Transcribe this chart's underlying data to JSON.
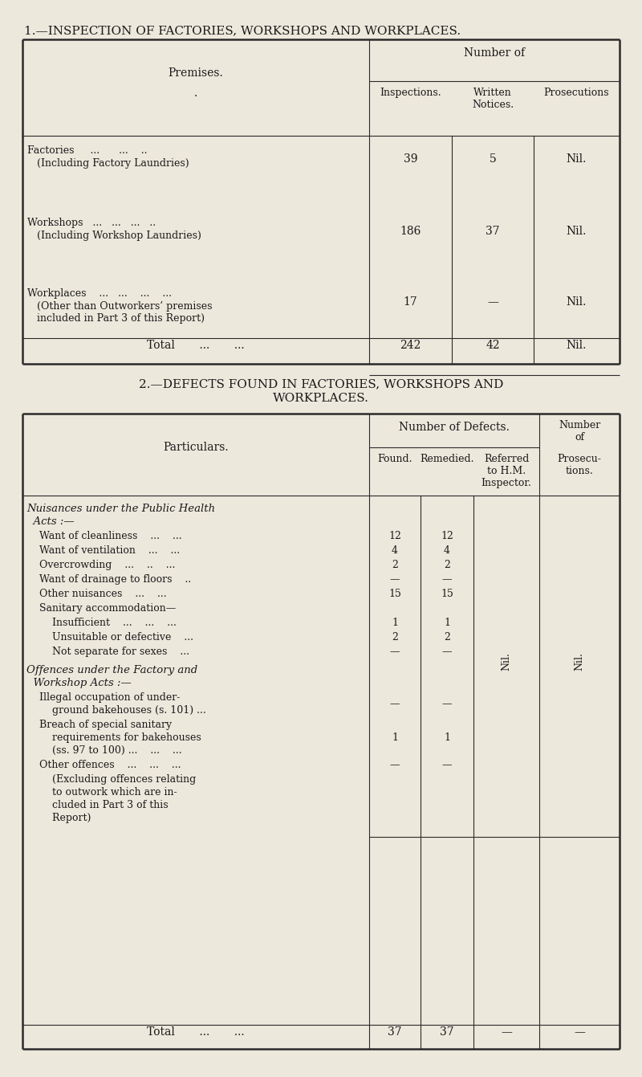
{
  "bg_color": "#ede8dc",
  "text_color": "#1a1a1a",
  "title1": "1.—INSPECTION OF FACTORIES, WORKSHOPS AND WORKPLACES.",
  "title2_line1": "2.—DEFECTS FOUND IN FACTORIES, WORKSHOPS AND",
  "title2_line2": "WORKPLACES.",
  "table1": {
    "rows": [
      {
        "label": "Factories     ...      ...    ..",
        "sublabel": "(Including Factory Laundries)",
        "vals": [
          "39",
          "5",
          "Nil."
        ]
      },
      {
        "label": "Workshops   ...   ...   ...   ..",
        "sublabel": "(Including Workshop Laundries)",
        "vals": [
          "186",
          "37",
          "Nil."
        ]
      },
      {
        "label": "Workplaces    ...   ...    ...    ...",
        "sublabel1": "(Other than Outworkers’ premises",
        "sublabel2": "included in Part 3 of this Report)",
        "vals": [
          "17",
          "—",
          "Nil."
        ]
      }
    ],
    "total_label": "Total       ...       ...",
    "total_vals": [
      "242",
      "42",
      "Nil."
    ]
  },
  "table2": {
    "total_label": "Total       ...       ...",
    "total_vals": [
      "37",
      "37",
      "—",
      "—"
    ]
  }
}
